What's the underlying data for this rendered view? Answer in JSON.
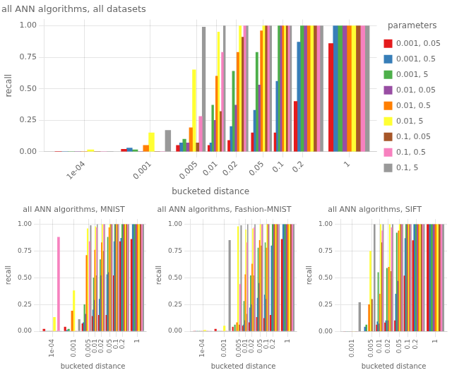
{
  "chart_data": [
    {
      "type": "bar",
      "title": "all ANN algorithms, all datasets",
      "xlabel": "bucketed distance",
      "ylabel": "recall",
      "x": [
        0.0001,
        0.001,
        0.005,
        0.01,
        0.02,
        0.05,
        0.1,
        0.2,
        1.0
      ],
      "series": [
        {
          "name": "0.001, 0.05",
          "color": "#E41A1C",
          "values": [
            0.003,
            0.02,
            0.05,
            0.05,
            0.09,
            0.15,
            0.15,
            0.4,
            0.86
          ]
        },
        {
          "name": "0.001, 0.5",
          "color": "#377EB8",
          "values": [
            0.0,
            0.03,
            0.07,
            0.07,
            0.2,
            0.33,
            0.56,
            0.87,
            1.0
          ]
        },
        {
          "name": "0.001, 5",
          "color": "#4DAF4A",
          "values": [
            0.0,
            0.015,
            0.1,
            0.37,
            0.64,
            0.79,
            1.0,
            1.0,
            1.0
          ]
        },
        {
          "name": "0.01, 0.05",
          "color": "#984EA3",
          "values": [
            0.0,
            0.0,
            0.07,
            0.25,
            0.37,
            0.53,
            1.0,
            1.0,
            1.0
          ]
        },
        {
          "name": "0.01, 0.5",
          "color": "#FF7F00",
          "values": [
            0.0,
            0.05,
            0.19,
            0.6,
            0.79,
            0.96,
            1.0,
            1.0,
            1.0
          ]
        },
        {
          "name": "0.01, 5",
          "color": "#FFFF33",
          "values": [
            0.015,
            0.15,
            0.65,
            0.95,
            1.0,
            1.0,
            1.0,
            1.0,
            1.0
          ]
        },
        {
          "name": "0.1, 0.05",
          "color": "#A65628",
          "values": [
            0.0,
            0.0,
            0.07,
            0.32,
            0.91,
            1.0,
            1.0,
            1.0,
            1.0
          ]
        },
        {
          "name": "0.1, 0.5",
          "color": "#F781BF",
          "values": [
            0.0,
            0.0,
            0.28,
            0.79,
            1.0,
            1.0,
            1.0,
            1.0,
            1.0
          ]
        },
        {
          "name": "0.1, 5",
          "color": "#999999",
          "values": [
            0.0,
            0.17,
            0.99,
            1.0,
            1.0,
            1.0,
            1.0,
            1.0,
            1.0
          ]
        }
      ],
      "xlim": [
        2.5119e-05,
        2.6265
      ],
      "xticks": [
        {
          "value": 0.0001,
          "label": "1e-04"
        },
        0.001,
        0.005,
        0.01,
        0.02,
        0.05,
        0.1,
        0.2,
        1
      ],
      "ylim": [
        0,
        1.05
      ],
      "yticks": [
        {
          "value": 0,
          "label": "0.00"
        },
        {
          "value": 0.25,
          "label": "0.25"
        },
        {
          "value": 0.5,
          "label": "0.50"
        },
        {
          "value": 0.75,
          "label": "0.75"
        },
        {
          "value": 1,
          "label": "1.00"
        }
      ],
      "log": "x",
      "grid": true,
      "legend": "right",
      "legend_title": "parameters"
    },
    {
      "type": "bar",
      "title": "all ANN algorithms, MNIST",
      "xlabel": "bucketed distance",
      "ylabel": "recall",
      "x": [
        0.0001,
        0.001,
        0.005,
        0.01,
        0.02,
        0.05,
        0.1,
        0.2,
        1.0
      ],
      "series": [
        {
          "name": "0.001, 0.05",
          "color": "#E41A1C",
          "values": [
            0.02,
            0.04,
            0.07,
            0.14,
            0.15,
            0.15,
            0.52,
            0.84,
            0.86
          ]
        },
        {
          "name": "0.001, 0.5",
          "color": "#377EB8",
          "values": [
            0.0,
            0.01,
            0.08,
            0.2,
            0.3,
            0.53,
            0.84,
            0.87,
            1.0
          ]
        },
        {
          "name": "0.001, 5",
          "color": "#4DAF4A",
          "values": [
            0.0,
            0.02,
            0.25,
            0.5,
            0.67,
            0.88,
            1.0,
            1.0,
            1.0
          ]
        },
        {
          "name": "0.01, 0.05",
          "color": "#984EA3",
          "values": [
            0.0,
            0.0,
            0.16,
            0.29,
            0.52,
            0.55,
            1.0,
            1.0,
            1.0
          ]
        },
        {
          "name": "0.01, 0.5",
          "color": "#FF7F00",
          "values": [
            0.0,
            0.19,
            0.71,
            0.76,
            0.83,
            0.97,
            1.0,
            1.0,
            1.0
          ]
        },
        {
          "name": "0.01, 5",
          "color": "#FFFF33",
          "values": [
            0.13,
            0.38,
            0.96,
            0.98,
            1.0,
            1.0,
            1.0,
            1.0,
            1.0
          ]
        },
        {
          "name": "0.1, 0.05",
          "color": "#A65628",
          "values": [
            0.0,
            0.0,
            0.0,
            0.52,
            0.75,
            1.0,
            1.0,
            1.0,
            1.0
          ]
        },
        {
          "name": "0.1, 0.5",
          "color": "#F781BF",
          "values": [
            0.88,
            0.0,
            0.84,
            0.97,
            1.0,
            1.0,
            1.0,
            1.0,
            1.0
          ]
        },
        {
          "name": "0.1, 5",
          "color": "#999999",
          "values": [
            0.0,
            0.11,
            0.99,
            1.0,
            1.0,
            1.0,
            1.0,
            1.0,
            1.0
          ]
        }
      ],
      "xlim": [
        2.5119e-05,
        2.6265
      ],
      "xticks": [
        {
          "value": 0.0001,
          "label": "1e-04"
        },
        0.001,
        0.005,
        0.01,
        0.02,
        0.05,
        0.1,
        0.2,
        1
      ],
      "ylim": [
        0,
        1.05
      ],
      "yticks": [
        {
          "value": 0,
          "label": "0.00"
        },
        {
          "value": 0.25,
          "label": "0.25"
        },
        {
          "value": 0.5,
          "label": "0.50"
        },
        {
          "value": 0.75,
          "label": "0.75"
        },
        {
          "value": 1,
          "label": "1.00"
        }
      ],
      "log": "x",
      "grid": true
    },
    {
      "type": "bar",
      "title": "all ANN algorithms, Fashion-MNIST",
      "xlabel": "bucketed distance",
      "ylabel": "recall",
      "x": [
        0.0001,
        0.001,
        0.005,
        0.01,
        0.02,
        0.05,
        0.1,
        0.2,
        1.0
      ],
      "series": [
        {
          "name": "0.001, 0.05",
          "color": "#E41A1C",
          "values": [
            0.0,
            0.02,
            0.04,
            0.05,
            0.08,
            0.13,
            0.12,
            0.15,
            0.86
          ]
        },
        {
          "name": "0.001, 0.5",
          "color": "#377EB8",
          "values": [
            0.0,
            0.0,
            0.0,
            0.06,
            0.22,
            0.31,
            0.34,
            0.8,
            1.0
          ]
        },
        {
          "name": "0.001, 5",
          "color": "#4DAF4A",
          "values": [
            0.0,
            0.0,
            0.06,
            0.28,
            0.52,
            0.78,
            0.83,
            1.0,
            1.0
          ]
        },
        {
          "name": "0.01, 0.05",
          "color": "#984EA3",
          "values": [
            0.0,
            0.0,
            0.0,
            0.1,
            0.25,
            0.45,
            0.3,
            1.0,
            1.0
          ]
        },
        {
          "name": "0.01, 0.5",
          "color": "#FF7F00",
          "values": [
            0.0,
            0.0,
            0.08,
            0.53,
            0.63,
            0.85,
            0.78,
            1.0,
            1.0
          ]
        },
        {
          "name": "0.01, 5",
          "color": "#FFFF33",
          "values": [
            0.01,
            0.05,
            0.98,
            0.95,
            0.96,
            1.0,
            1.0,
            1.0,
            1.0
          ]
        },
        {
          "name": "0.1, 0.05",
          "color": "#A65628",
          "values": [
            0.0,
            0.0,
            0.06,
            0.16,
            0.52,
            0.8,
            1.0,
            1.0,
            1.0
          ]
        },
        {
          "name": "0.1, 0.5",
          "color": "#F781BF",
          "values": [
            0.0,
            0.0,
            0.44,
            0.83,
            0.97,
            1.0,
            1.0,
            1.0,
            1.0
          ]
        },
        {
          "name": "0.1, 5",
          "color": "#999999",
          "values": [
            0.0,
            0.85,
            0.99,
            1.0,
            1.0,
            1.0,
            1.0,
            1.0,
            1.0
          ]
        }
      ],
      "xlim": [
        2.5119e-05,
        2.6265
      ],
      "xticks": [
        {
          "value": 0.0001,
          "label": "1e-04"
        },
        0.001,
        0.005,
        0.01,
        0.02,
        0.05,
        0.1,
        0.2,
        1
      ],
      "ylim": [
        0,
        1.05
      ],
      "yticks": [
        {
          "value": 0,
          "label": "0.00"
        },
        {
          "value": 0.25,
          "label": "0.25"
        },
        {
          "value": 0.5,
          "label": "0.50"
        },
        {
          "value": 0.75,
          "label": "0.75"
        },
        {
          "value": 1,
          "label": "1.00"
        }
      ],
      "log": "x",
      "grid": true
    },
    {
      "type": "bar",
      "title": "all ANN algorithms, SIFT",
      "xlabel": "bucketed distance",
      "ylabel": "recall",
      "x": [
        0.001,
        0.005,
        0.01,
        0.02,
        0.05,
        0.1,
        0.2,
        1.0
      ],
      "series": [
        {
          "name": "0.001, 0.05",
          "color": "#E41A1C",
          "values": [
            0.0,
            0.0,
            0.06,
            0.08,
            0.1,
            0.52,
            0.85,
            1.0
          ]
        },
        {
          "name": "0.001, 0.5",
          "color": "#377EB8",
          "values": [
            0.0,
            0.04,
            0.09,
            0.1,
            0.35,
            0.87,
            1.0,
            1.0
          ]
        },
        {
          "name": "0.001, 5",
          "color": "#4DAF4A",
          "values": [
            0.0,
            0.06,
            0.55,
            0.59,
            0.92,
            1.0,
            1.0,
            1.0
          ]
        },
        {
          "name": "0.01, 0.05",
          "color": "#984EA3",
          "values": [
            0.0,
            0.0,
            0.07,
            0.1,
            0.47,
            1.0,
            1.0,
            1.0
          ]
        },
        {
          "name": "0.01, 0.5",
          "color": "#FF7F00",
          "values": [
            0.0,
            0.25,
            0.35,
            0.6,
            0.94,
            1.0,
            1.0,
            1.0
          ]
        },
        {
          "name": "0.01, 5",
          "color": "#FFFF33",
          "values": [
            0.0,
            0.75,
            1.0,
            1.0,
            1.0,
            1.0,
            1.0,
            1.0
          ]
        },
        {
          "name": "0.1, 0.05",
          "color": "#A65628",
          "values": [
            0.0,
            0.3,
            0.83,
            0.56,
            1.0,
            1.0,
            1.0,
            1.0
          ]
        },
        {
          "name": "0.1, 0.5",
          "color": "#F781BF",
          "values": [
            0.0,
            0.0,
            0.94,
            0.97,
            1.0,
            1.0,
            1.0,
            1.0
          ]
        },
        {
          "name": "0.1, 5",
          "color": "#999999",
          "values": [
            0.27,
            1.0,
            1.0,
            1.0,
            1.0,
            1.0,
            1.0,
            1.0
          ]
        }
      ],
      "xlim": [
        0.00038073,
        2.6265
      ],
      "xticks": [
        0.001,
        0.005,
        0.01,
        0.02,
        0.05,
        0.1,
        0.2,
        1
      ],
      "ylim": [
        0,
        1.05
      ],
      "yticks": [
        {
          "value": 0,
          "label": "0.00"
        },
        {
          "value": 0.25,
          "label": "0.25"
        },
        {
          "value": 0.5,
          "label": "0.50"
        },
        {
          "value": 0.75,
          "label": "0.75"
        },
        {
          "value": 1,
          "label": "1.00"
        }
      ],
      "log": "x",
      "grid": true
    }
  ]
}
